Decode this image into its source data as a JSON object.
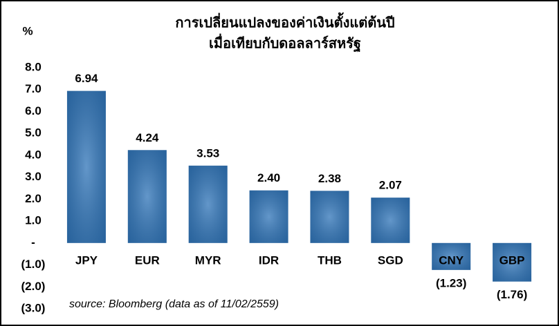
{
  "chart_data": {
    "type": "bar",
    "title": [
      "การเปลี่ยนแปลงของค่าเงินตั้งแต่ต้นปี",
      "เมื่อเทียบกับดอลลาร์สหรัฐ"
    ],
    "y_label": "%",
    "annotation": "source: Bloomberg (data as of 11/02/2559)",
    "categories": [
      "JPY",
      "EUR",
      "MYR",
      "IDR",
      "THB",
      "SGD",
      "CNY",
      "GBP"
    ],
    "values": [
      6.94,
      4.24,
      3.53,
      2.4,
      2.38,
      2.07,
      -1.23,
      -1.76
    ],
    "value_labels": [
      "6.94",
      "4.24",
      "3.53",
      "2.40",
      "2.38",
      "2.07",
      "(1.23)",
      "(1.76)"
    ],
    "color": "#2f74b8",
    "ylim": [
      -3,
      8
    ],
    "yticks": [
      {
        "value": 8,
        "label": "8.0"
      },
      {
        "value": 7,
        "label": "7.0"
      },
      {
        "value": 6,
        "label": "6.0"
      },
      {
        "value": 5,
        "label": "5.0"
      },
      {
        "value": 4,
        "label": "4.0"
      },
      {
        "value": 3,
        "label": "3.0"
      },
      {
        "value": 2,
        "label": "2.0"
      },
      {
        "value": 1,
        "label": "1.0"
      },
      {
        "value": 0,
        "label": "-"
      },
      {
        "value": -1,
        "label": "(1.0)"
      },
      {
        "value": -2,
        "label": "(2.0)"
      },
      {
        "value": -3,
        "label": "(3.0)"
      }
    ],
    "grid": false
  }
}
